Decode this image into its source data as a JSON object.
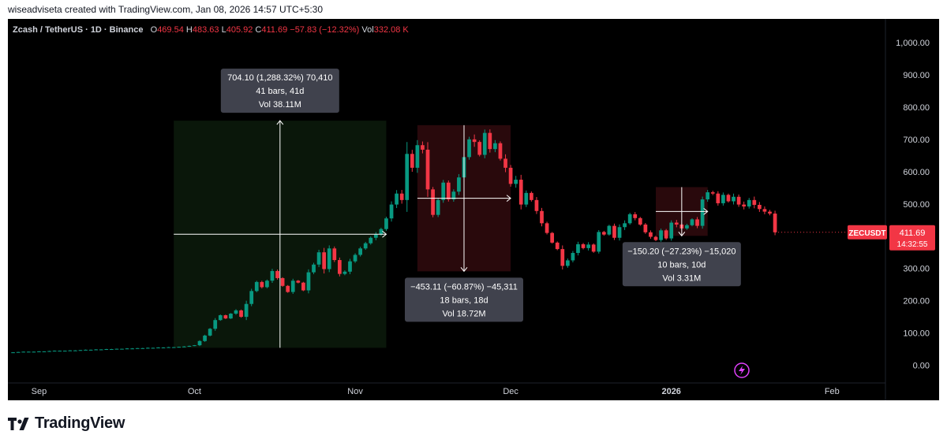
{
  "caption": "wiseadviseta created with TradingView.com, Jan 08, 2026 14:57 UTC+5:30",
  "legend": {
    "symbol": "Zcash / TetherUS · 1D · Binance",
    "o_label": "O",
    "o_value": "469.54",
    "h_label": "H",
    "h_value": "483.63",
    "l_label": "L",
    "l_value": "405.92",
    "c_label": "C",
    "c_value": "411.69",
    "change": "−57.83 (−12.32%)",
    "vol_label": "Vol",
    "vol_value": "332.08 K"
  },
  "price_tag": {
    "symbol": "ZECUSDT",
    "price": "411.69",
    "countdown": "14:32:55"
  },
  "brand": "TradingView",
  "colors": {
    "up": "#089981",
    "down": "#f23645",
    "bg": "#000000",
    "text": "#d1d4dc"
  },
  "chart_data": {
    "type": "candlestick",
    "y_ticks": [
      "1,000.00",
      "900.00",
      "800.00",
      "700.00",
      "600.00",
      "500.00",
      "400.00",
      "300.00",
      "200.00",
      "100.00",
      "0.00"
    ],
    "ylim": [
      -50,
      1000
    ],
    "x_ticks": [
      {
        "label": "Sep",
        "day": -29
      },
      {
        "label": "Oct",
        "day": 1
      },
      {
        "label": "Nov",
        "day": 32
      },
      {
        "label": "Dec",
        "day": 62
      },
      {
        "label": "2026",
        "day": 93
      },
      {
        "label": "Feb",
        "day": 124
      }
    ],
    "xlim": [
      -35,
      134
    ],
    "closes": [
      40,
      41,
      42,
      42,
      42,
      43,
      43,
      44,
      45,
      45,
      45,
      46,
      46,
      47,
      48,
      48,
      49,
      49,
      50,
      50,
      51,
      51,
      52,
      52,
      53,
      53,
      54,
      54,
      55,
      55,
      56,
      56,
      57,
      58,
      60,
      62,
      75,
      92,
      113,
      140,
      155,
      145,
      160,
      170,
      150,
      190,
      230,
      258,
      242,
      262,
      292,
      270,
      246,
      227,
      262,
      256,
      232,
      288,
      312,
      350,
      298,
      362,
      326,
      283,
      290,
      322,
      342,
      362,
      378,
      395,
      405,
      422,
      455,
      498,
      532,
      512,
      655,
      612,
      682,
      668,
      545,
      466,
      512,
      566,
      514,
      538,
      582,
      645,
      700,
      692,
      652,
      720,
      670,
      688,
      640,
      612,
      562,
      575,
      498,
      534,
      512,
      478,
      440,
      410,
      380,
      360,
      308,
      325,
      348,
      375,
      363,
      374,
      352,
      413,
      405,
      432,
      395,
      428,
      440,
      468,
      456,
      436,
      412,
      398,
      388,
      418,
      393,
      442,
      436,
      424,
      434,
      452,
      432,
      514,
      536,
      532,
      502,
      528,
      508,
      522,
      498,
      492,
      512,
      497,
      484,
      476,
      470,
      412
    ],
    "ranges": [
      {
        "lines": [
          "704.10 (1,288.32%) 70,410",
          "41 bars, 41d",
          "Vol 38.11M"
        ],
        "from_day": -3,
        "to_day": 38,
        "from_price": 54,
        "to_price": 758
      },
      {
        "lines": [
          "−453.11 (−60.87%) −45,311",
          "18 bars, 18d",
          "Vol 18.72M"
        ],
        "from_day": 44,
        "to_day": 62,
        "from_price": 744,
        "to_price": 291
      },
      {
        "lines": [
          "−150.20 (−27.23%) −15,020",
          "10 bars, 10d",
          "Vol 3.31M"
        ],
        "from_day": 90,
        "to_day": 100,
        "from_price": 552,
        "to_price": 401
      }
    ]
  }
}
